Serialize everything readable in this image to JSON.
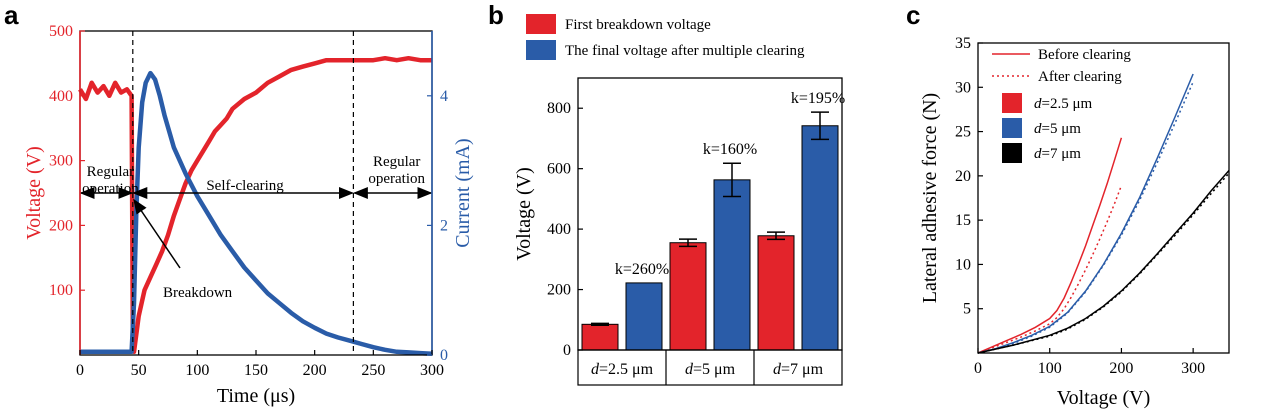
{
  "colors": {
    "red": "#e3242b",
    "blue": "#2a5ca8",
    "black": "#000000"
  },
  "chart_data": [
    {
      "panel": "a",
      "type": "line",
      "xlabel": "Time (μs)",
      "ylabel_left": "Voltage (V)",
      "ylabel_right": "Current (mA)",
      "xlim": [
        0,
        300
      ],
      "ylim_left": [
        0,
        500
      ],
      "ylim_right": [
        0,
        5
      ],
      "xticks": [
        "0",
        "50",
        "100",
        "150",
        "200",
        "250",
        "300"
      ],
      "yticks_left": [
        "100",
        "200",
        "300",
        "400",
        "500"
      ],
      "yticks_right": [
        "0",
        "2",
        "4"
      ],
      "series": [
        {
          "axis": "left",
          "color": "#e3242b",
          "x": [
            0,
            5,
            10,
            15,
            20,
            25,
            30,
            35,
            40,
            44,
            45,
            46,
            50,
            55,
            60,
            65,
            70,
            75,
            80,
            85,
            90,
            95,
            100,
            105,
            110,
            115,
            120,
            125,
            130,
            140,
            150,
            160,
            170,
            180,
            190,
            200,
            210,
            220,
            230,
            240,
            250,
            260,
            270,
            280,
            290,
            300
          ],
          "y": [
            410,
            395,
            420,
            405,
            415,
            400,
            420,
            405,
            410,
            400,
            40,
            5,
            60,
            100,
            120,
            140,
            160,
            185,
            215,
            240,
            265,
            285,
            300,
            315,
            330,
            345,
            355,
            365,
            380,
            395,
            405,
            420,
            430,
            440,
            445,
            450,
            455,
            455,
            455,
            455,
            455,
            458,
            455,
            458,
            455,
            455
          ]
        },
        {
          "axis": "right",
          "color": "#2a5ca8",
          "x": [
            0,
            20,
            44,
            46,
            48,
            50,
            53,
            56,
            60,
            64,
            68,
            72,
            76,
            80,
            90,
            100,
            110,
            120,
            130,
            140,
            150,
            160,
            170,
            180,
            190,
            200,
            210,
            220,
            230,
            240,
            250,
            260,
            270,
            280,
            290,
            300
          ],
          "y": [
            0.05,
            0.05,
            0.05,
            0.8,
            2.2,
            3.2,
            3.9,
            4.2,
            4.35,
            4.25,
            4.0,
            3.7,
            3.45,
            3.2,
            2.8,
            2.45,
            2.15,
            1.85,
            1.6,
            1.35,
            1.15,
            0.95,
            0.8,
            0.65,
            0.52,
            0.42,
            0.33,
            0.27,
            0.22,
            0.17,
            0.12,
            0.08,
            0.05,
            0.04,
            0.03,
            0.02
          ]
        }
      ],
      "annotations": {
        "regular_operation_left": [
          "Regular",
          "operation"
        ],
        "self_clearing": "Self-clearing",
        "regular_operation_right": [
          "Regular",
          "operation"
        ],
        "breakdown": "Breakdown",
        "dashed_lines_x": [
          45,
          233
        ],
        "arrow_level_left": 250
      }
    },
    {
      "panel": "b",
      "type": "bar",
      "ylabel": "Voltage (V)",
      "ylim": [
        0,
        900
      ],
      "yticks": [
        "0",
        "200",
        "400",
        "600",
        "800"
      ],
      "categories": [
        "d=2.5 μm",
        "d=5 μm",
        "d=7 μm"
      ],
      "category_parts": [
        [
          "d",
          "=2.5 μm"
        ],
        [
          "d",
          "=5 μm"
        ],
        [
          "d",
          "=7 μm"
        ]
      ],
      "series": [
        {
          "name": "First breakdown voltage",
          "color": "#e3242b",
          "values": [
            85,
            355,
            378
          ],
          "errors": [
            3,
            12,
            12
          ]
        },
        {
          "name": "The final voltage after multiple clearing",
          "color": "#2a5ca8",
          "values": [
            222,
            563,
            742
          ],
          "errors": [
            0,
            55,
            45
          ]
        }
      ],
      "bar_labels": [
        "k=260%",
        "k=160%",
        "k=195%"
      ]
    },
    {
      "panel": "c",
      "type": "line",
      "xlabel": "Voltage (V)",
      "ylabel": "Lateral adhesive force (N)",
      "xlim": [
        0,
        350
      ],
      "ylim": [
        0,
        35
      ],
      "xticks": [
        "0",
        "100",
        "200",
        "300"
      ],
      "yticks": [
        "5",
        "10",
        "15",
        "20",
        "25",
        "30",
        "35"
      ],
      "legend_lines": [
        {
          "label": "Before clearing",
          "style": "solid"
        },
        {
          "label": "After clearing",
          "style": "dotted"
        }
      ],
      "legend_boxes": [
        {
          "italic": "d",
          "rest": "=2.5 μm",
          "color": "#e3242b"
        },
        {
          "italic": "d",
          "rest": "=5 μm",
          "color": "#2a5ca8"
        },
        {
          "italic": "d",
          "rest": "=7 μm",
          "color": "#000000"
        }
      ],
      "series": [
        {
          "name": "d=2.5 μm before",
          "color": "#e3242b",
          "style": "solid",
          "x": [
            0,
            20,
            40,
            60,
            80,
            100,
            110,
            120,
            130,
            140,
            150,
            160,
            170,
            180,
            190,
            200
          ],
          "y": [
            0,
            0.7,
            1.4,
            2.1,
            2.9,
            3.9,
            4.8,
            6.2,
            8.0,
            10.0,
            12.1,
            14.4,
            16.7,
            19.1,
            21.7,
            24.3
          ]
        },
        {
          "name": "d=2.5 μm after",
          "color": "#e3242b",
          "style": "dotted",
          "x": [
            0,
            20,
            40,
            60,
            80,
            100,
            110,
            120,
            130,
            140,
            150,
            160,
            170,
            180,
            190,
            200
          ],
          "y": [
            0,
            0.6,
            1.2,
            1.8,
            2.5,
            3.3,
            4.0,
            5.0,
            6.3,
            7.8,
            9.4,
            11.1,
            12.9,
            14.8,
            16.8,
            18.9
          ]
        },
        {
          "name": "d=5 μm before",
          "color": "#2a5ca8",
          "style": "solid",
          "x": [
            0,
            25,
            50,
            75,
            100,
            125,
            150,
            175,
            200,
            225,
            250,
            275,
            300
          ],
          "y": [
            0,
            0.5,
            1.2,
            2.0,
            3.0,
            4.6,
            7.0,
            10.0,
            13.5,
            17.5,
            22.0,
            26.7,
            31.5
          ]
        },
        {
          "name": "d=5 μm after",
          "color": "#2a5ca8",
          "style": "dotted",
          "x": [
            0,
            25,
            50,
            75,
            100,
            125,
            150,
            175,
            200,
            225,
            250,
            275,
            300
          ],
          "y": [
            0,
            0.5,
            1.1,
            1.9,
            2.9,
            4.5,
            6.9,
            9.9,
            13.3,
            17.2,
            21.5,
            26.0,
            30.6
          ]
        },
        {
          "name": "d=7 μm before",
          "color": "#000000",
          "style": "solid",
          "x": [
            0,
            50,
            100,
            125,
            150,
            175,
            200,
            225,
            250,
            275,
            300,
            325,
            350
          ],
          "y": [
            0,
            0.9,
            2.0,
            2.8,
            3.9,
            5.3,
            7.0,
            9.0,
            11.2,
            13.5,
            15.8,
            18.3,
            20.6
          ]
        },
        {
          "name": "d=7 μm after",
          "color": "#000000",
          "style": "dotted",
          "x": [
            0,
            50,
            100,
            125,
            150,
            175,
            200,
            225,
            250,
            275,
            300,
            325,
            350
          ],
          "y": [
            0,
            0.9,
            1.9,
            2.7,
            3.8,
            5.2,
            6.9,
            8.9,
            11.1,
            13.3,
            15.6,
            18.0,
            20.3
          ]
        }
      ]
    }
  ]
}
